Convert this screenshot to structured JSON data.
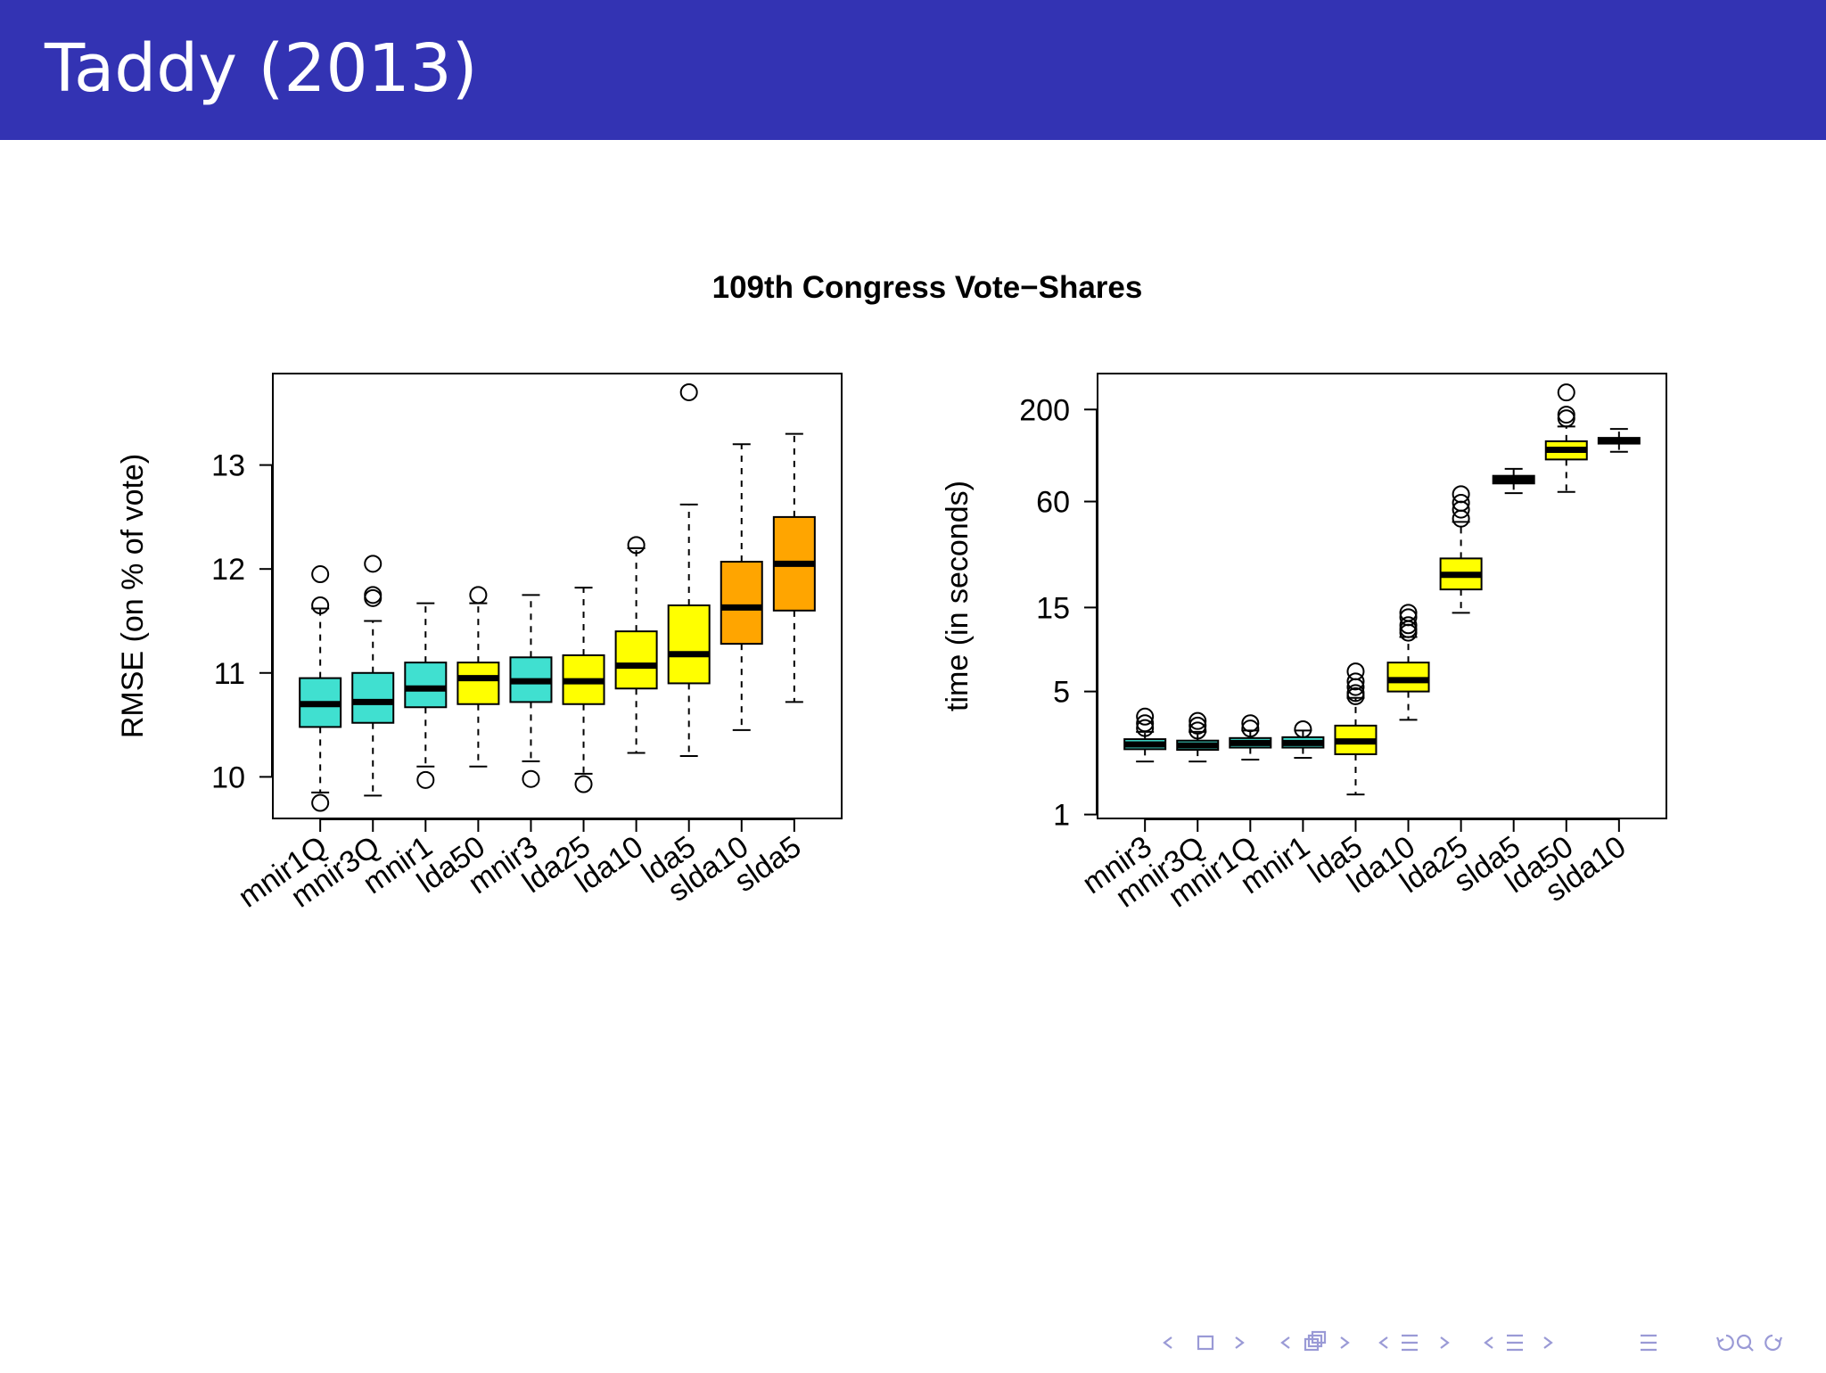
{
  "slide": {
    "title": "Taddy (2013)"
  },
  "colors": {
    "header": "#3333b3",
    "turquoise": "#40e0d0",
    "yellow": "#ffff00",
    "orange": "#ffa500",
    "black": "#000000",
    "nav": "#9a9ad6"
  },
  "nav": {
    "icons": [
      "nav-prev-frame-icon",
      "nav-frame-icon",
      "nav-next-frame-icon",
      "nav-prev-subsection-icon",
      "nav-subsection-icon",
      "nav-next-subsection-icon",
      "nav-prev-section-icon",
      "nav-section-icon",
      "nav-next-section-icon",
      "nav-align-icon",
      "nav-search-icon"
    ]
  },
  "chart_data": {
    "title": "109th Congress Vote−Shares",
    "panels": [
      {
        "type": "boxplot",
        "ylabel": "RMSE (on % of vote)",
        "xlabel": "",
        "yscale": "linear",
        "ylim": [
          9.6,
          13.88
        ],
        "yticks": [
          10,
          11,
          12,
          13
        ],
        "ytick_labels": [
          "10",
          "11",
          "12",
          "13"
        ],
        "categories": [
          "mnir1Q",
          "mnir3Q",
          "mnir1",
          "lda50",
          "mnir3",
          "lda25",
          "lda10",
          "lda5",
          "slda10",
          "slda5"
        ],
        "boxes": [
          {
            "name": "mnir1Q",
            "color": "#40e0d0",
            "whisker_low": 9.85,
            "q1": 10.48,
            "median": 10.7,
            "q3": 10.95,
            "whisker_high": 11.62,
            "outliers": [
              11.95,
              11.65,
              9.75
            ]
          },
          {
            "name": "mnir3Q",
            "color": "#40e0d0",
            "whisker_low": 9.82,
            "q1": 10.52,
            "median": 10.72,
            "q3": 11.0,
            "whisker_high": 11.5,
            "outliers": [
              12.05,
              11.75,
              11.72
            ]
          },
          {
            "name": "mnir1",
            "color": "#40e0d0",
            "whisker_low": 10.1,
            "q1": 10.67,
            "median": 10.85,
            "q3": 11.1,
            "whisker_high": 11.67,
            "outliers": [
              9.97
            ]
          },
          {
            "name": "lda50",
            "color": "#ffff00",
            "whisker_low": 10.1,
            "q1": 10.7,
            "median": 10.95,
            "q3": 11.1,
            "whisker_high": 11.67,
            "outliers": [
              11.75
            ]
          },
          {
            "name": "mnir3",
            "color": "#40e0d0",
            "whisker_low": 10.15,
            "q1": 10.72,
            "median": 10.92,
            "q3": 11.15,
            "whisker_high": 11.75,
            "outliers": [
              9.98
            ]
          },
          {
            "name": "lda25",
            "color": "#ffff00",
            "whisker_low": 10.03,
            "q1": 10.7,
            "median": 10.92,
            "q3": 11.17,
            "whisker_high": 11.82,
            "outliers": [
              9.93
            ]
          },
          {
            "name": "lda10",
            "color": "#ffff00",
            "whisker_low": 10.23,
            "q1": 10.85,
            "median": 11.07,
            "q3": 11.4,
            "whisker_high": 12.2,
            "outliers": [
              12.23
            ]
          },
          {
            "name": "lda5",
            "color": "#ffff00",
            "whisker_low": 10.2,
            "q1": 10.9,
            "median": 11.18,
            "q3": 11.65,
            "whisker_high": 12.62,
            "outliers": [
              13.7
            ]
          },
          {
            "name": "slda10",
            "color": "#ffa500",
            "whisker_low": 10.45,
            "q1": 11.28,
            "median": 11.63,
            "q3": 12.07,
            "whisker_high": 13.2,
            "outliers": []
          },
          {
            "name": "slda5",
            "color": "#ffa500",
            "whisker_low": 10.72,
            "q1": 11.6,
            "median": 12.05,
            "q3": 12.5,
            "whisker_high": 13.3,
            "outliers": []
          }
        ]
      },
      {
        "type": "boxplot",
        "ylabel": "time (in seconds)",
        "xlabel": "",
        "yscale": "log",
        "ylim": [
          0.95,
          320
        ],
        "yticks": [
          1,
          5,
          15,
          60,
          200
        ],
        "ytick_labels": [
          "1",
          "5",
          "15",
          "60",
          "200"
        ],
        "categories": [
          "mnir3",
          "mnir3Q",
          "mnir1Q",
          "mnir1",
          "lda5",
          "lda10",
          "lda25",
          "slda5",
          "lda50",
          "slda10"
        ],
        "boxes": [
          {
            "name": "mnir3",
            "color": "#40e0d0",
            "whisker_low": 2.0,
            "q1": 2.35,
            "median": 2.5,
            "q3": 2.68,
            "whisker_high": 2.95,
            "outliers": [
              3.6,
              3.3,
              3.1
            ]
          },
          {
            "name": "mnir3Q",
            "color": "#40e0d0",
            "whisker_low": 2.0,
            "q1": 2.33,
            "median": 2.47,
            "q3": 2.63,
            "whisker_high": 2.95,
            "outliers": [
              3.4,
              3.2,
              3.0
            ]
          },
          {
            "name": "mnir1Q",
            "color": "#40e0d0",
            "whisker_low": 2.05,
            "q1": 2.4,
            "median": 2.55,
            "q3": 2.72,
            "whisker_high": 3.0,
            "outliers": [
              3.3,
              3.08
            ]
          },
          {
            "name": "mnir1",
            "color": "#40e0d0",
            "whisker_low": 2.1,
            "q1": 2.4,
            "median": 2.55,
            "q3": 2.75,
            "whisker_high": 3.0,
            "outliers": [
              3.05
            ]
          },
          {
            "name": "lda5",
            "color": "#ffff00",
            "whisker_low": 1.3,
            "q1": 2.2,
            "median": 2.6,
            "q3": 3.2,
            "whisker_high": 4.6,
            "outliers": [
              6.5,
              5.7,
              5.3,
              4.9,
              4.7
            ]
          },
          {
            "name": "lda10",
            "color": "#ffff00",
            "whisker_low": 3.45,
            "q1": 5.0,
            "median": 5.8,
            "q3": 7.3,
            "whisker_high": 10.2,
            "outliers": [
              14.0,
              13.2,
              11.9,
              11.3,
              10.8
            ]
          },
          {
            "name": "lda25",
            "color": "#ffff00",
            "whisker_low": 14.0,
            "q1": 19.0,
            "median": 23.0,
            "q3": 28.5,
            "whisker_high": 46.0,
            "outliers": [
              66.0,
              59.0,
              54.0,
              48.0
            ]
          },
          {
            "name": "slda5",
            "color": "#000000",
            "whisker_low": 67.0,
            "q1": 76.0,
            "median": 80.0,
            "q3": 84.0,
            "whisker_high": 92.0,
            "outliers": []
          },
          {
            "name": "lda50",
            "color": "#ffff00",
            "whisker_low": 68.0,
            "q1": 104.0,
            "median": 118.0,
            "q3": 132.0,
            "whisker_high": 160.0,
            "outliers": [
              250.0,
              187.0,
              178.0
            ]
          },
          {
            "name": "slda10",
            "color": "#000000",
            "whisker_low": 115.0,
            "q1": 128.0,
            "median": 133.0,
            "q3": 138.0,
            "whisker_high": 155.0,
            "outliers": []
          }
        ]
      }
    ]
  }
}
